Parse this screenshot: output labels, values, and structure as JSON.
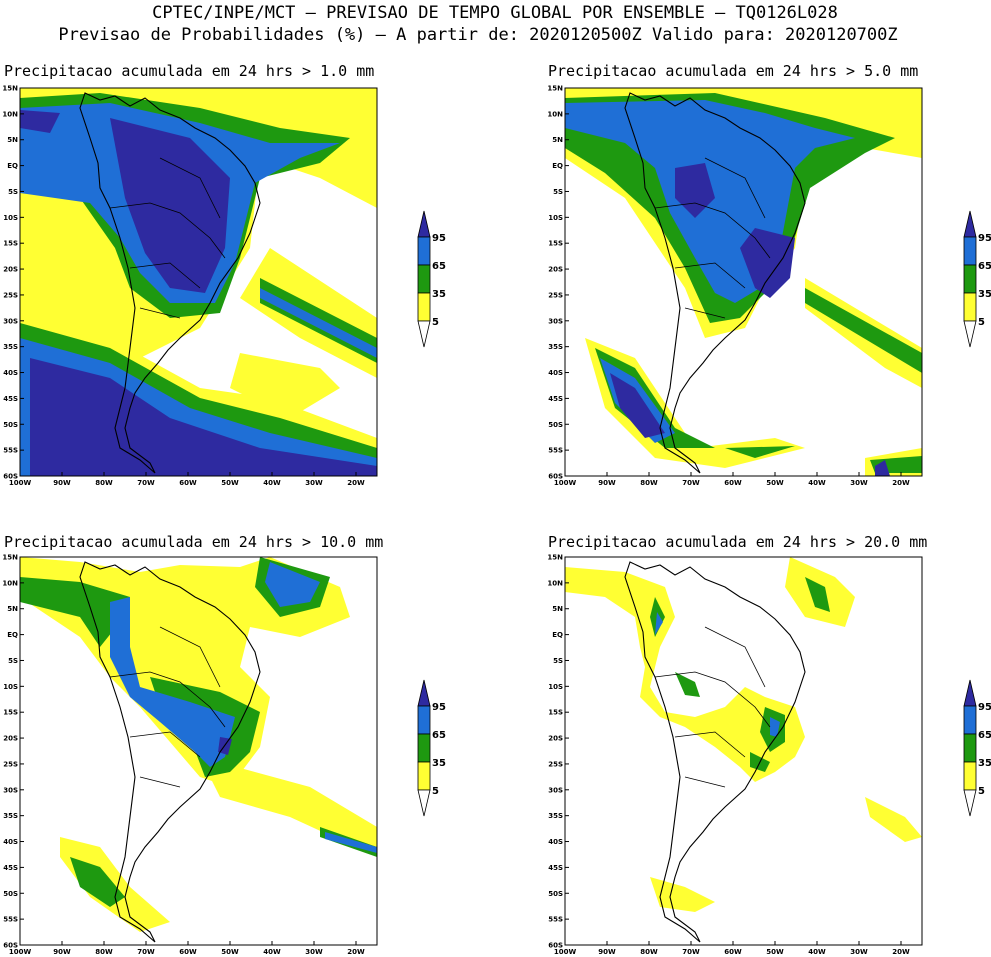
{
  "header": {
    "line1": "CPTEC/INPE/MCT – PREVISAO DE TEMPO GLOBAL POR ENSEMBLE – TQ0126L028",
    "line2": "Previsao de Probabilidades (%) –  A partir de: 2020120500Z  Valido para: 2020120700Z"
  },
  "axes": {
    "lat_labels": [
      "15N",
      "10N",
      "5N",
      "EQ",
      "5S",
      "10S",
      "15S",
      "20S",
      "25S",
      "30S",
      "35S",
      "40S",
      "45S",
      "50S",
      "55S",
      "60S"
    ],
    "lon_labels": [
      "100W",
      "90W",
      "80W",
      "70W",
      "60W",
      "50W",
      "40W",
      "30W",
      "20W"
    ],
    "lat_range": [
      -60,
      15
    ],
    "lon_range": [
      -100,
      -15
    ]
  },
  "colorbar": {
    "levels": [
      "5",
      "35",
      "65",
      "95"
    ],
    "colors": {
      "below": "#ffffff",
      "c5": "#ffff33",
      "c35": "#1e9910",
      "c65": "#1f6fd6",
      "c95": "#2e2aa0"
    }
  },
  "panels": [
    {
      "title": "Precipitacao acumulada em 24 hrs > 1.0 mm"
    },
    {
      "title": "Precipitacao acumulada em 24 hrs > 5.0 mm"
    },
    {
      "title": "Precipitacao acumulada em 24 hrs > 10.0 mm"
    },
    {
      "title": "Precipitacao acumulada em 24 hrs > 20.0 mm"
    }
  ]
}
